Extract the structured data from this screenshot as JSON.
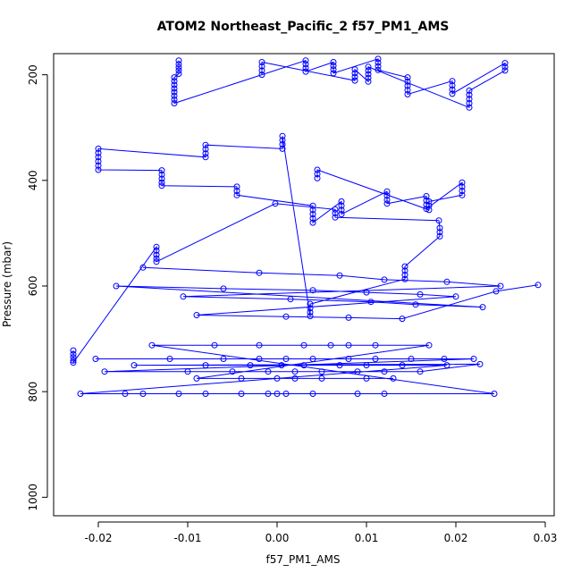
{
  "chart_data": {
    "type": "scatter",
    "title": "ATOM2 Northeast_Pacific_2 f57_PM1_AMS",
    "xlabel": "f57_PM1_AMS",
    "ylabel": "Pressure (mbar)",
    "xlim": [
      -0.025,
      0.031
    ],
    "ylim": [
      1035,
      160
    ],
    "y_axis_reversed": true,
    "x_ticks": [
      -0.02,
      -0.01,
      0.0,
      0.01,
      0.02,
      0.03
    ],
    "x_tick_labels": [
      "-0.02",
      "-0.01",
      "0.00",
      "0.01",
      "0.02",
      "0.03"
    ],
    "y_ticks": [
      200,
      400,
      600,
      800,
      1000
    ],
    "y_tick_labels": [
      "200",
      "400",
      "600",
      "800",
      "1000"
    ],
    "grid": false,
    "marker": "open-circle",
    "color": "#0000ff",
    "series": [
      {
        "x": [
          -0.0228,
          -0.0228,
          -0.0228,
          -0.0228,
          -0.0228,
          -0.0135,
          -0.0135,
          -0.0135,
          -0.0135,
          -0.0135,
          -0.0002,
          0.0065,
          0.0065,
          0.0065,
          0.0181,
          0.0182,
          0.0182,
          0.0182,
          0.0143,
          0.0143,
          0.0143,
          0.0143,
          0.0037,
          0.0037,
          0.0037,
          0.0037,
          0.0006,
          0.0006,
          0.0006,
          0.0006,
          -0.008,
          -0.008,
          -0.008,
          -0.008,
          -0.02,
          -0.02,
          -0.02,
          -0.02,
          -0.02,
          -0.02,
          -0.0129,
          -0.0129,
          -0.0129,
          -0.0129,
          -0.0129,
          -0.0045,
          -0.0045,
          -0.0045,
          0.004,
          0.004,
          0.004,
          0.004,
          0.004,
          0.0072,
          0.0072,
          0.0072,
          0.0072,
          0.0123,
          0.0123,
          0.0123,
          0.0123,
          0.0167,
          0.0167,
          0.0167,
          0.0167,
          0.0207,
          0.0207,
          0.0207,
          0.0207,
          0.017,
          0.017,
          0.017,
          0.0045,
          0.0045,
          0.0045
        ],
        "y": [
          722,
          729,
          735,
          741,
          745,
          526,
          533,
          541,
          548,
          554,
          444,
          455,
          462,
          470,
          476,
          490,
          498,
          506,
          563,
          571,
          579,
          587,
          634,
          642,
          650,
          657,
          316,
          324,
          332,
          340,
          333,
          341,
          349,
          356,
          340,
          348,
          356,
          364,
          372,
          380,
          381,
          389,
          397,
          404,
          410,
          412,
          420,
          428,
          448,
          456,
          464,
          472,
          480,
          440,
          448,
          456,
          464,
          421,
          429,
          437,
          444,
          430,
          438,
          446,
          454,
          404,
          412,
          420,
          428,
          440,
          448,
          456,
          380,
          388,
          396
        ]
      },
      {
        "x": [
          -0.011,
          -0.011,
          -0.011,
          -0.011,
          -0.011,
          -0.0115,
          -0.0115,
          -0.0115,
          -0.0115,
          -0.0115,
          -0.0115,
          -0.0115,
          -0.0115,
          0.0032,
          0.0032,
          0.0032,
          0.0032,
          0.0063,
          0.0063,
          0.0063,
          0.0063,
          0.0113,
          0.0113,
          0.0113,
          0.0113,
          0.0146,
          0.0146,
          0.0146,
          0.0146,
          0.0146,
          0.0196,
          0.0196,
          0.0196,
          0.0196,
          0.0255,
          0.0255,
          0.0255,
          0.0215,
          0.0215,
          0.0215,
          0.0215,
          0.0215,
          0.0102,
          0.0102,
          0.0102,
          0.0102,
          0.0102,
          0.0087,
          0.0087,
          0.0087,
          0.0087,
          -0.0017,
          -0.0017,
          -0.0017,
          -0.0017
        ],
        "y": [
          173,
          180,
          186,
          192,
          198,
          205,
          212,
          219,
          226,
          233,
          240,
          247,
          254,
          173,
          180,
          187,
          194,
          176,
          183,
          190,
          197,
          170,
          177,
          184,
          191,
          205,
          213,
          221,
          229,
          237,
          212,
          220,
          228,
          236,
          178,
          185,
          192,
          230,
          238,
          246,
          254,
          262,
          185,
          192,
          199,
          206,
          213,
          190,
          197,
          204,
          211,
          176,
          184,
          192,
          200
        ]
      },
      {
        "x": [
          -0.015,
          -0.002,
          0.007,
          0.012,
          0.019,
          0.025,
          -0.0105,
          0.0015,
          0.0105,
          0.0155,
          0.023,
          -0.018,
          -0.006,
          0.004,
          0.01,
          0.016,
          0.02,
          -0.009,
          0.001,
          0.008,
          0.014,
          0.0245,
          0.0292
        ],
        "y": [
          565,
          575,
          580,
          588,
          592,
          600,
          620,
          625,
          630,
          635,
          640,
          600,
          605,
          608,
          612,
          616,
          620,
          655,
          658,
          660,
          662,
          610,
          598
        ]
      },
      {
        "x": [
          -0.0203,
          -0.012,
          -0.006,
          -0.002,
          0.001,
          0.004,
          0.008,
          0.011,
          0.015,
          0.0187,
          0.022,
          -0.0193,
          -0.01,
          -0.005,
          -0.001,
          0.002,
          0.005,
          0.009,
          0.012,
          0.016,
          0.0227,
          -0.016,
          -0.008,
          -0.003,
          0.0005,
          0.003,
          0.007,
          0.01,
          0.014,
          0.019,
          -0.022,
          -0.017,
          -0.015,
          -0.011,
          -0.008,
          -0.004,
          -0.001,
          0.0,
          0.001,
          0.004,
          0.009,
          0.012,
          0.0243,
          -0.014,
          -0.007,
          -0.002,
          0.003,
          0.006,
          0.008,
          0.011,
          0.017,
          -0.009,
          -0.004,
          0.0,
          0.002,
          0.005,
          0.01,
          0.013
        ],
        "y": [
          738,
          738,
          738,
          738,
          738,
          738,
          738,
          738,
          738,
          738,
          738,
          762,
          762,
          762,
          762,
          762,
          762,
          762,
          762,
          762,
          748,
          750,
          750,
          750,
          750,
          750,
          750,
          750,
          750,
          750,
          804,
          804,
          804,
          804,
          804,
          804,
          804,
          804,
          804,
          804,
          804,
          804,
          804,
          712,
          712,
          712,
          712,
          712,
          712,
          712,
          712,
          775,
          775,
          775,
          775,
          775,
          775,
          775
        ]
      }
    ]
  }
}
